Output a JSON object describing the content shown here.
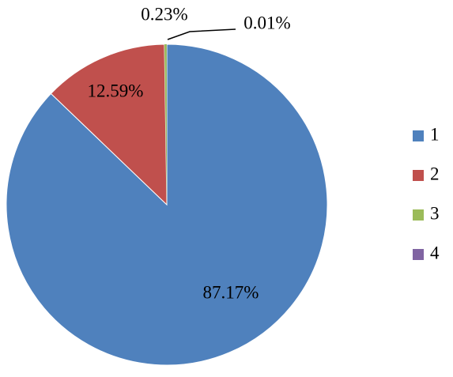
{
  "chart_data": {
    "type": "pie",
    "categories": [
      "1",
      "2",
      "3",
      "4"
    ],
    "values": [
      87.17,
      12.59,
      0.23,
      0.01
    ],
    "value_labels": [
      "87.17%",
      "12.59%",
      "0.23%",
      "0.01%"
    ],
    "colors": [
      "#4f81bd",
      "#c0504d",
      "#9bbb59",
      "#8064a2"
    ],
    "legend": "right"
  }
}
